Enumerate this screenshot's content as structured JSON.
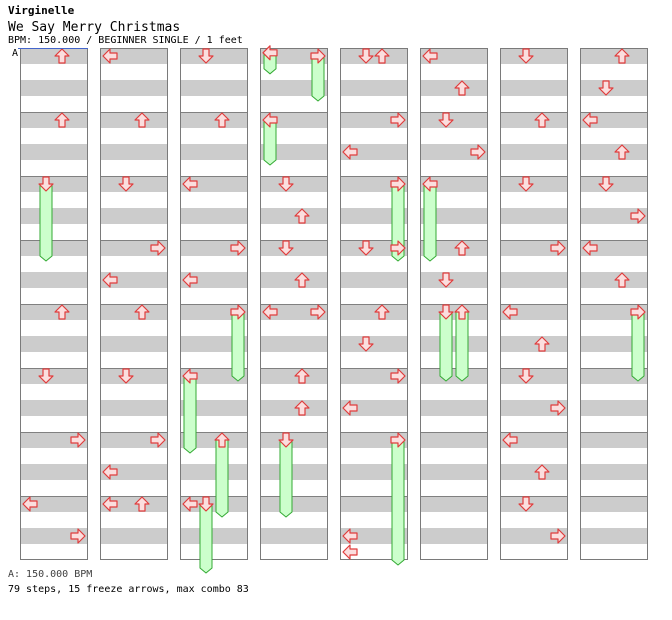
{
  "header": {
    "artist": "Virginelle",
    "song_title": "We Say Merry Christmas",
    "chart_info": "BPM: 150.000 / BEGINNER SINGLE / 1 feet"
  },
  "footer": {
    "bpm_line": "A: 150.000 BPM",
    "stats": "79 steps, 15 freeze arrows, max combo 83"
  },
  "bpm_marker": {
    "label": "A"
  },
  "colors": {
    "arrow_fill": "#fbdede",
    "arrow_stroke": "#e03c3c",
    "freeze_fill": "#ccffcc",
    "freeze_stroke": "#33aa33",
    "stripe": "#cccccc",
    "border": "#7a7a7a",
    "marker": "#4466cc"
  },
  "chart_data": {
    "type": "step-chart",
    "columns": 8,
    "measures_per_column": 8,
    "lanes": [
      "left",
      "down",
      "up",
      "right"
    ],
    "notes": [
      {
        "col": 0,
        "m": 0,
        "beat": 0,
        "lane": "up"
      },
      {
        "col": 0,
        "m": 1,
        "beat": 0,
        "lane": "up"
      },
      {
        "col": 0,
        "m": 2,
        "beat": 0,
        "lane": "down",
        "hold": 2.25
      },
      {
        "col": 0,
        "m": 4,
        "beat": 0,
        "lane": "up"
      },
      {
        "col": 0,
        "m": 5,
        "beat": 0,
        "lane": "down"
      },
      {
        "col": 0,
        "m": 6,
        "beat": 0,
        "lane": "right"
      },
      {
        "col": 0,
        "m": 7,
        "beat": 0,
        "lane": "left"
      },
      {
        "col": 0,
        "m": 7,
        "beat": 1,
        "lane": "right"
      },
      {
        "col": 1,
        "m": 0,
        "beat": 0,
        "lane": "left"
      },
      {
        "col": 1,
        "m": 1,
        "beat": 0,
        "lane": "up"
      },
      {
        "col": 1,
        "m": 2,
        "beat": 0,
        "lane": "down"
      },
      {
        "col": 1,
        "m": 3,
        "beat": 0,
        "lane": "right"
      },
      {
        "col": 1,
        "m": 3,
        "beat": 1,
        "lane": "left"
      },
      {
        "col": 1,
        "m": 4,
        "beat": 0,
        "lane": "up"
      },
      {
        "col": 1,
        "m": 5,
        "beat": 0,
        "lane": "down"
      },
      {
        "col": 1,
        "m": 6,
        "beat": 0,
        "lane": "right"
      },
      {
        "col": 1,
        "m": 6,
        "beat": 1,
        "lane": "left"
      },
      {
        "col": 1,
        "m": 7,
        "beat": 0,
        "lane": "left"
      },
      {
        "col": 1,
        "m": 7,
        "beat": 0,
        "lane": "up"
      },
      {
        "col": 2,
        "m": 0,
        "beat": 0,
        "lane": "down"
      },
      {
        "col": 2,
        "m": 1,
        "beat": 0,
        "lane": "up"
      },
      {
        "col": 2,
        "m": 2,
        "beat": 0,
        "lane": "left"
      },
      {
        "col": 2,
        "m": 3,
        "beat": 0,
        "lane": "right"
      },
      {
        "col": 2,
        "m": 3,
        "beat": 1,
        "lane": "left"
      },
      {
        "col": 2,
        "m": 4,
        "beat": 0,
        "lane": "right",
        "hold": 2.0
      },
      {
        "col": 2,
        "m": 5,
        "beat": 0,
        "lane": "left",
        "hold": 2.25
      },
      {
        "col": 2,
        "m": 6,
        "beat": 0,
        "lane": "up",
        "hold": 2.25
      },
      {
        "col": 2,
        "m": 7,
        "beat": 0,
        "lane": "left"
      },
      {
        "col": 2,
        "m": 7,
        "beat": 0,
        "lane": "down",
        "hold": 2.0
      },
      {
        "col": 3,
        "m": 0,
        "beat": -0.1,
        "lane": "left",
        "hold": 0.5
      },
      {
        "col": 3,
        "m": 0,
        "beat": 0,
        "lane": "right",
        "hold": 1.25
      },
      {
        "col": 3,
        "m": 1,
        "beat": 0,
        "lane": "left",
        "hold": 1.25
      },
      {
        "col": 3,
        "m": 2,
        "beat": 0,
        "lane": "down"
      },
      {
        "col": 3,
        "m": 2,
        "beat": 1,
        "lane": "up"
      },
      {
        "col": 3,
        "m": 3,
        "beat": 0,
        "lane": "down"
      },
      {
        "col": 3,
        "m": 3,
        "beat": 1,
        "lane": "up"
      },
      {
        "col": 3,
        "m": 4,
        "beat": 0,
        "lane": "left"
      },
      {
        "col": 3,
        "m": 4,
        "beat": 0,
        "lane": "right"
      },
      {
        "col": 3,
        "m": 5,
        "beat": 0,
        "lane": "up"
      },
      {
        "col": 3,
        "m": 5,
        "beat": 1,
        "lane": "up"
      },
      {
        "col": 3,
        "m": 6,
        "beat": 0,
        "lane": "down",
        "hold": 2.25
      },
      {
        "col": 4,
        "m": 0,
        "beat": 0,
        "lane": "down"
      },
      {
        "col": 4,
        "m": 0,
        "beat": 0,
        "lane": "up"
      },
      {
        "col": 4,
        "m": 1,
        "beat": 0,
        "lane": "right"
      },
      {
        "col": 4,
        "m": 1,
        "beat": 1,
        "lane": "left"
      },
      {
        "col": 4,
        "m": 2,
        "beat": 0,
        "lane": "right",
        "hold": 2.25
      },
      {
        "col": 4,
        "m": 3,
        "beat": 0,
        "lane": "down"
      },
      {
        "col": 4,
        "m": 3,
        "beat": 0,
        "lane": "right"
      },
      {
        "col": 4,
        "m": 4,
        "beat": 0,
        "lane": "up"
      },
      {
        "col": 4,
        "m": 4,
        "beat": 1,
        "lane": "down"
      },
      {
        "col": 4,
        "m": 5,
        "beat": 0,
        "lane": "right"
      },
      {
        "col": 4,
        "m": 5,
        "beat": 1,
        "lane": "left"
      },
      {
        "col": 4,
        "m": 6,
        "beat": 0,
        "lane": "right",
        "hold": 3.75
      },
      {
        "col": 4,
        "m": 7,
        "beat": 1,
        "lane": "left"
      },
      {
        "col": 4,
        "m": 7,
        "beat": 1.5,
        "lane": "left"
      },
      {
        "col": 5,
        "m": 0,
        "beat": 0,
        "lane": "left"
      },
      {
        "col": 5,
        "m": 0,
        "beat": 1,
        "lane": "up"
      },
      {
        "col": 5,
        "m": 1,
        "beat": 0,
        "lane": "down"
      },
      {
        "col": 5,
        "m": 1,
        "beat": 1,
        "lane": "right"
      },
      {
        "col": 5,
        "m": 2,
        "beat": 0,
        "lane": "left",
        "hold": 2.25
      },
      {
        "col": 5,
        "m": 3,
        "beat": 0,
        "lane": "up"
      },
      {
        "col": 5,
        "m": 3,
        "beat": 1,
        "lane": "down"
      },
      {
        "col": 5,
        "m": 4,
        "beat": 0,
        "lane": "down",
        "hold": 2.0
      },
      {
        "col": 5,
        "m": 4,
        "beat": 0,
        "lane": "up",
        "hold": 2.0
      },
      {
        "col": 6,
        "m": 0,
        "beat": 0,
        "lane": "down"
      },
      {
        "col": 6,
        "m": 1,
        "beat": 0,
        "lane": "up"
      },
      {
        "col": 6,
        "m": 2,
        "beat": 0,
        "lane": "down"
      },
      {
        "col": 6,
        "m": 3,
        "beat": 0,
        "lane": "right"
      },
      {
        "col": 6,
        "m": 4,
        "beat": 0,
        "lane": "left"
      },
      {
        "col": 6,
        "m": 4,
        "beat": 1,
        "lane": "up"
      },
      {
        "col": 6,
        "m": 5,
        "beat": 0,
        "lane": "down"
      },
      {
        "col": 6,
        "m": 5,
        "beat": 1,
        "lane": "right"
      },
      {
        "col": 6,
        "m": 6,
        "beat": 0,
        "lane": "left"
      },
      {
        "col": 6,
        "m": 6,
        "beat": 1,
        "lane": "up"
      },
      {
        "col": 6,
        "m": 7,
        "beat": 0,
        "lane": "down"
      },
      {
        "col": 6,
        "m": 7,
        "beat": 1,
        "lane": "right"
      },
      {
        "col": 7,
        "m": 0,
        "beat": 0,
        "lane": "up"
      },
      {
        "col": 7,
        "m": 0,
        "beat": 1,
        "lane": "down"
      },
      {
        "col": 7,
        "m": 1,
        "beat": 0,
        "lane": "left"
      },
      {
        "col": 7,
        "m": 1,
        "beat": 1,
        "lane": "up"
      },
      {
        "col": 7,
        "m": 2,
        "beat": 0,
        "lane": "down"
      },
      {
        "col": 7,
        "m": 2,
        "beat": 1,
        "lane": "right"
      },
      {
        "col": 7,
        "m": 3,
        "beat": 0,
        "lane": "left"
      },
      {
        "col": 7,
        "m": 3,
        "beat": 1,
        "lane": "up"
      },
      {
        "col": 7,
        "m": 4,
        "beat": 0,
        "lane": "right",
        "hold": 2.0
      }
    ]
  }
}
